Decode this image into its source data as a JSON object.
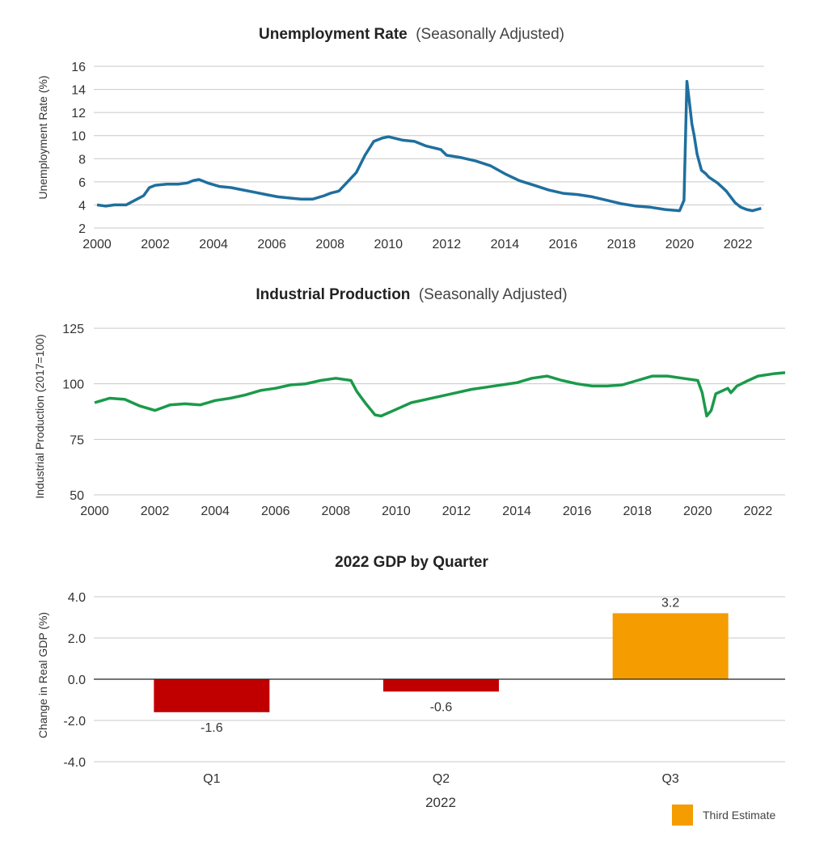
{
  "chart_data": [
    {
      "type": "line",
      "title": "Unemployment Rate",
      "subtitle": "(Seasonally Adjusted)",
      "ylabel": "Unemployment Rate (%)",
      "xlabel": "",
      "xlim": [
        2000,
        2022.9
      ],
      "ylim": [
        2,
        16
      ],
      "yticks": [
        "2",
        "4",
        "6",
        "8",
        "10",
        "12",
        "14",
        "16"
      ],
      "xticks": [
        "2000",
        "2002",
        "2004",
        "2006",
        "2008",
        "2010",
        "2012",
        "2014",
        "2016",
        "2018",
        "2020",
        "2022"
      ],
      "grid": true,
      "color": "#1f6f9e",
      "series": [
        {
          "x": [
            2000.0,
            2000.3,
            2000.6,
            2001.0,
            2001.3,
            2001.6,
            2001.8,
            2002.0,
            2002.4,
            2002.8,
            2003.1,
            2003.3,
            2003.5,
            2003.8,
            2004.2,
            2004.6,
            2005.0,
            2005.4,
            2005.8,
            2006.2,
            2006.6,
            2007.0,
            2007.4,
            2007.8,
            2008.0,
            2008.3,
            2008.6,
            2008.9,
            2009.2,
            2009.5,
            2009.8,
            2010.0,
            2010.5,
            2010.9,
            2011.3,
            2011.8,
            2012.0,
            2012.5,
            2013.0,
            2013.5,
            2014.0,
            2014.5,
            2015.0,
            2015.5,
            2016.0,
            2016.5,
            2017.0,
            2017.5,
            2018.0,
            2018.5,
            2019.0,
            2019.5,
            2020.0,
            2020.15,
            2020.25,
            2020.32,
            2020.42,
            2020.5,
            2020.6,
            2020.75,
            2020.9,
            2021.0,
            2021.3,
            2021.6,
            2021.9,
            2022.1,
            2022.3,
            2022.5,
            2022.8
          ],
          "y": [
            4.0,
            3.9,
            4.0,
            4.0,
            4.4,
            4.8,
            5.5,
            5.7,
            5.8,
            5.8,
            5.9,
            6.1,
            6.2,
            5.9,
            5.6,
            5.5,
            5.3,
            5.1,
            4.9,
            4.7,
            4.6,
            4.5,
            4.5,
            4.8,
            5.0,
            5.2,
            6.0,
            6.8,
            8.3,
            9.5,
            9.8,
            9.9,
            9.6,
            9.5,
            9.1,
            8.8,
            8.3,
            8.1,
            7.8,
            7.4,
            6.7,
            6.1,
            5.7,
            5.3,
            5.0,
            4.9,
            4.7,
            4.4,
            4.1,
            3.9,
            3.8,
            3.6,
            3.5,
            4.4,
            14.7,
            13.2,
            11.0,
            10.0,
            8.4,
            7.0,
            6.7,
            6.4,
            5.9,
            5.2,
            4.2,
            3.8,
            3.6,
            3.5,
            3.7
          ]
        }
      ]
    },
    {
      "type": "line",
      "title": "Industrial Production",
      "subtitle": "(Seasonally Adjusted)",
      "ylabel": "Industrial Production (2017=100)",
      "xlabel": "",
      "xlim": [
        2000,
        2022.9
      ],
      "ylim": [
        50,
        125
      ],
      "yticks": [
        "50",
        "75",
        "100",
        "125"
      ],
      "xticks": [
        "2000",
        "2002",
        "2004",
        "2006",
        "2008",
        "2010",
        "2012",
        "2014",
        "2016",
        "2018",
        "2020",
        "2022"
      ],
      "grid": true,
      "color": "#1a9a4a",
      "series": [
        {
          "x": [
            2000.0,
            2000.5,
            2001.0,
            2001.5,
            2002.0,
            2002.5,
            2003.0,
            2003.5,
            2004.0,
            2004.5,
            2005.0,
            2005.5,
            2006.0,
            2006.5,
            2007.0,
            2007.5,
            2008.0,
            2008.5,
            2008.7,
            2009.0,
            2009.3,
            2009.5,
            2010.0,
            2010.5,
            2011.0,
            2011.5,
            2012.0,
            2012.5,
            2013.0,
            2013.5,
            2014.0,
            2014.5,
            2015.0,
            2015.5,
            2016.0,
            2016.5,
            2017.0,
            2017.5,
            2018.0,
            2018.5,
            2019.0,
            2019.5,
            2020.0,
            2020.15,
            2020.3,
            2020.45,
            2020.6,
            2021.0,
            2021.1,
            2021.3,
            2021.6,
            2022.0,
            2022.5,
            2022.9
          ],
          "y": [
            91.5,
            93.5,
            93.0,
            90.0,
            88.0,
            90.5,
            91.0,
            90.5,
            92.5,
            93.5,
            95.0,
            97.0,
            98.0,
            99.5,
            100.0,
            101.5,
            102.5,
            101.5,
            96.5,
            91.0,
            86.0,
            85.5,
            88.5,
            91.5,
            93.0,
            94.5,
            96.0,
            97.5,
            98.5,
            99.5,
            100.5,
            102.5,
            103.5,
            101.5,
            100.0,
            99.0,
            99.0,
            99.5,
            101.5,
            103.5,
            103.5,
            102.5,
            101.5,
            96.0,
            85.5,
            88.0,
            95.5,
            98.0,
            96.0,
            99.0,
            101.0,
            103.5,
            104.5,
            105.0
          ]
        }
      ]
    },
    {
      "type": "bar",
      "title": "2022 GDP by Quarter",
      "ylabel": "Change in Real GDP (%)",
      "xlabel": "2022",
      "categories": [
        "Q1",
        "Q2",
        "Q3"
      ],
      "values": [
        -1.6,
        -0.6,
        3.2
      ],
      "data_labels": [
        "-1.6",
        "-0.6",
        "3.2"
      ],
      "bar_colors": [
        "#c00000",
        "#c00000",
        "#f59c00"
      ],
      "ylim": [
        -4.0,
        4.0
      ],
      "yticks": [
        "-4.0",
        "-2.0",
        "0.0",
        "2.0",
        "4.0"
      ],
      "grid": true,
      "legend": {
        "label": "Third Estimate",
        "color": "#f59c00",
        "position": "bottom-right"
      }
    }
  ]
}
